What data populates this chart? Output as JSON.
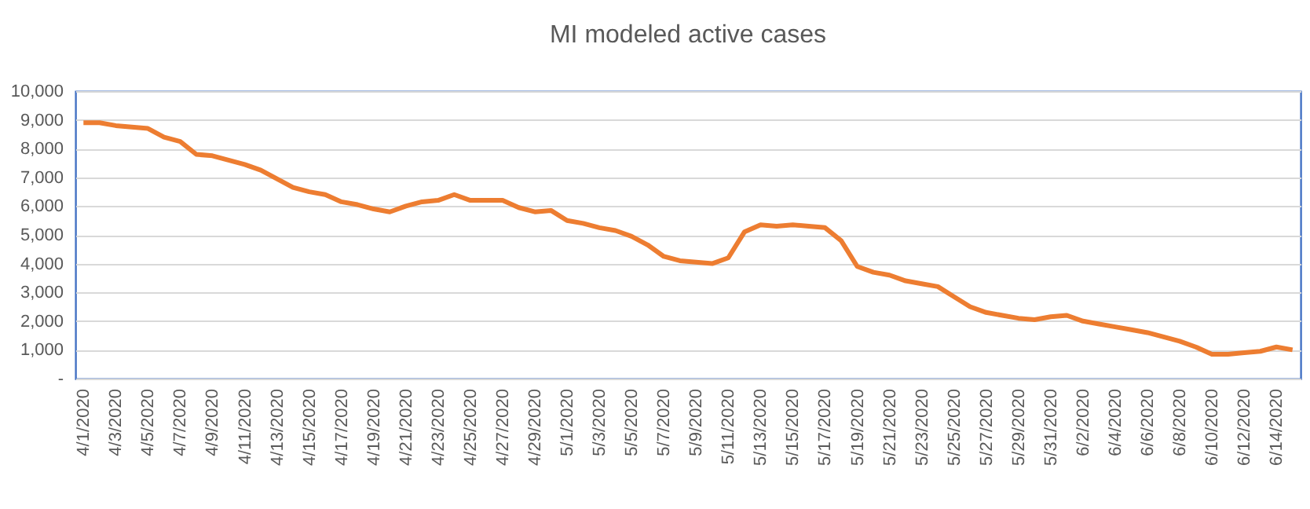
{
  "chart_data": {
    "type": "line",
    "title": "MI modeled active cases",
    "categories": [
      "4/1/2020",
      null,
      "4/3/2020",
      null,
      "4/5/2020",
      null,
      "4/7/2020",
      null,
      "4/9/2020",
      null,
      "4/11/2020",
      null,
      "4/13/2020",
      null,
      "4/15/2020",
      null,
      "4/17/2020",
      null,
      "4/19/2020",
      null,
      "4/21/2020",
      null,
      "4/23/2020",
      null,
      "4/25/2020",
      null,
      "4/27/2020",
      null,
      "4/29/2020",
      null,
      "5/1/2020",
      null,
      "5/3/2020",
      null,
      "5/5/2020",
      null,
      "5/7/2020",
      null,
      "5/9/2020",
      null,
      "5/11/2020",
      null,
      "5/13/2020",
      null,
      "5/15/2020",
      null,
      "5/17/2020",
      null,
      "5/19/2020",
      null,
      "5/21/2020",
      null,
      "5/23/2020",
      null,
      "5/25/2020",
      null,
      "5/27/2020",
      null,
      "5/29/2020",
      null,
      "5/31/2020",
      null,
      "6/2/2020",
      null,
      "6/4/2020",
      null,
      "6/6/2020",
      null,
      "6/8/2020",
      null,
      "6/10/2020",
      null,
      "6/12/2020",
      null,
      "6/14/2020",
      null
    ],
    "series": [
      {
        "color": "#ed7d31",
        "values": [
          8900,
          8900,
          8800,
          8750,
          8700,
          8400,
          8250,
          7800,
          7750,
          7600,
          7450,
          7250,
          6950,
          6650,
          6500,
          6400,
          6150,
          6050,
          5900,
          5800,
          6000,
          6150,
          6200,
          6400,
          6200,
          6200,
          6200,
          5950,
          5800,
          5850,
          5500,
          5400,
          5250,
          5150,
          4950,
          4650,
          4250,
          4100,
          4050,
          4000,
          4200,
          5100,
          5350,
          5300,
          5350,
          5300,
          5250,
          4800,
          3900,
          3700,
          3600,
          3400,
          3300,
          3200,
          2850,
          2500,
          2300,
          2200,
          2100,
          2050,
          2150,
          2200,
          2000,
          1900,
          1800,
          1700,
          1600,
          1450,
          1300,
          1100,
          850,
          850,
          900,
          950,
          1100,
          1000
        ]
      }
    ],
    "ylim": [
      0,
      10000
    ],
    "yticks": [
      {
        "value": 0,
        "label": "-"
      },
      {
        "value": 1000,
        "label": "1,000"
      },
      {
        "value": 2000,
        "label": "2,000"
      },
      {
        "value": 3000,
        "label": "3,000"
      },
      {
        "value": 4000,
        "label": "4,000"
      },
      {
        "value": 5000,
        "label": "5,000"
      },
      {
        "value": 6000,
        "label": "6,000"
      },
      {
        "value": 7000,
        "label": "7,000"
      },
      {
        "value": 8000,
        "label": "8,000"
      },
      {
        "value": 9000,
        "label": "9,000"
      },
      {
        "value": 10000,
        "label": "10,000"
      }
    ],
    "grid": "y",
    "marker": "none",
    "line_style": "solid"
  }
}
